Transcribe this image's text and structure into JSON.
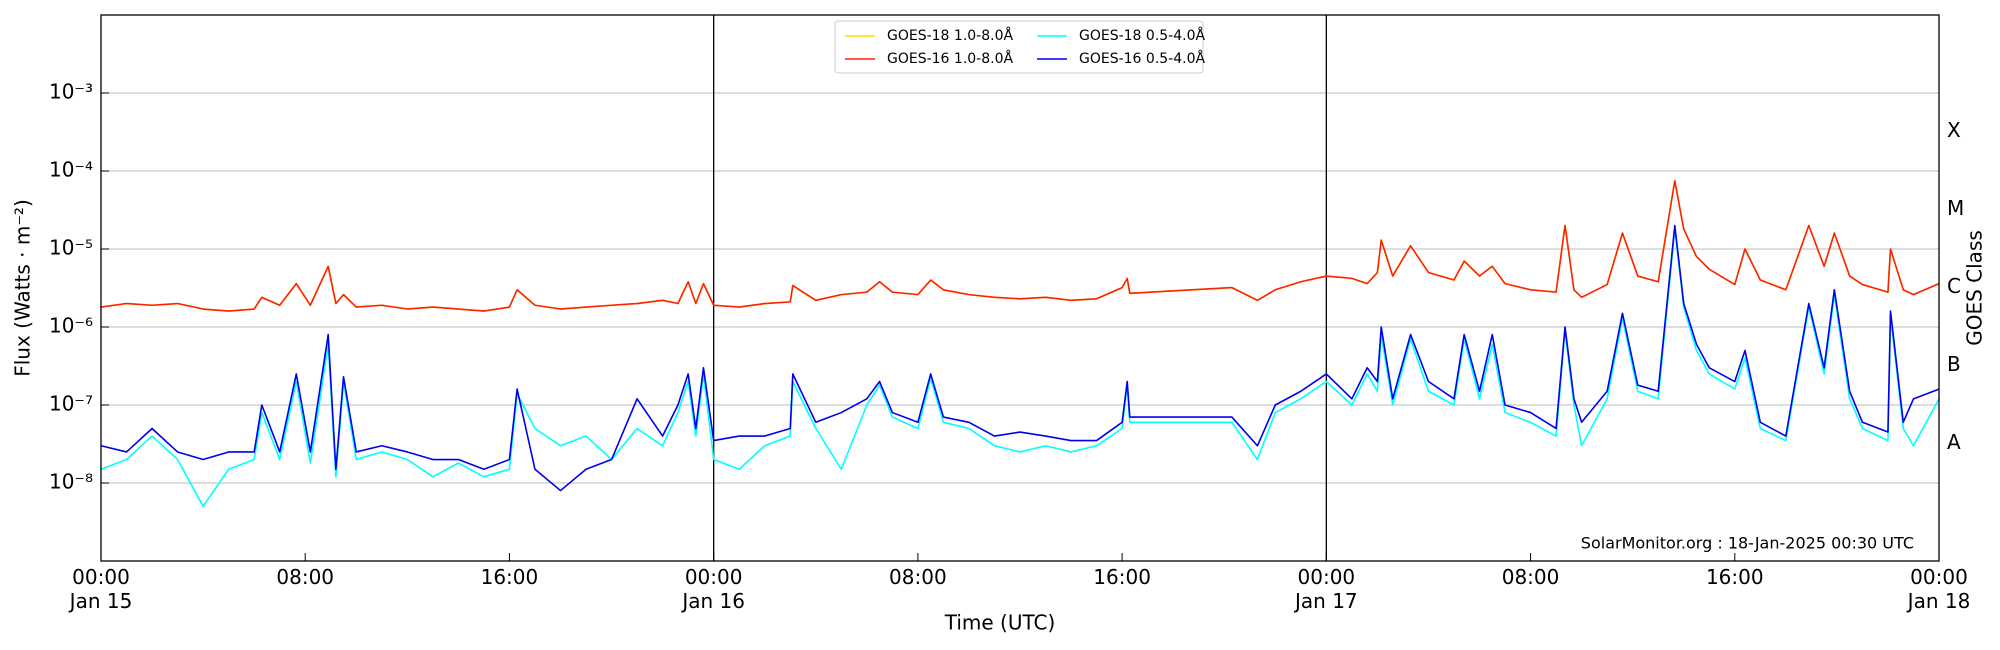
{
  "chart_data": {
    "type": "line",
    "x_label": "Time (UTC)",
    "y_label": "Flux (Watts · m⁻²)",
    "y2_label": "GOES Class",
    "annotation": "SolarMonitor.org : 18-Jan-2025 00:30 UTC",
    "log_y": true,
    "grid": true,
    "legend": "upper center",
    "xlim": [
      0,
      72
    ],
    "ylim": [
      1e-09,
      0.01
    ],
    "y2lim": [
      1e-09,
      0.01
    ],
    "xticks": [
      {
        "value": 0,
        "label": "00:00\nJan 15"
      },
      {
        "value": 8,
        "label": "08:00"
      },
      {
        "value": 16,
        "label": "16:00"
      },
      {
        "value": 24,
        "label": "00:00\nJan 16"
      },
      {
        "value": 32,
        "label": "08:00"
      },
      {
        "value": 40,
        "label": "16:00"
      },
      {
        "value": 48,
        "label": "00:00\nJan 17"
      },
      {
        "value": 56,
        "label": "08:00"
      },
      {
        "value": 64,
        "label": "16:00"
      },
      {
        "value": 72,
        "label": "00:00\nJan 18"
      }
    ],
    "yticks": [
      {
        "value": 1e-08,
        "label": "10⁻⁸"
      },
      {
        "value": 1e-07,
        "label": "10⁻⁷"
      },
      {
        "value": 1e-06,
        "label": "10⁻⁶"
      },
      {
        "value": 1e-05,
        "label": "10⁻⁵"
      },
      {
        "value": 0.0001,
        "label": "10⁻⁴"
      },
      {
        "value": 0.001,
        "label": "10⁻³"
      }
    ],
    "y2ticks": [
      {
        "value": 3.2e-08,
        "label": "A"
      },
      {
        "value": 3.2e-07,
        "label": "B"
      },
      {
        "value": 3.2e-06,
        "label": "C"
      },
      {
        "value": 3.2e-05,
        "label": "M"
      },
      {
        "value": 0.00032,
        "label": "X"
      }
    ],
    "x": [
      0,
      1,
      2,
      3,
      4,
      5,
      6,
      6.3,
      7,
      7.65,
      8.2,
      8.9,
      9.2,
      9.5,
      10,
      11,
      12,
      13,
      14,
      15,
      16,
      16.3,
      17,
      18,
      19,
      20,
      21,
      22,
      22.6,
      23,
      23.3,
      23.6,
      24,
      25,
      26,
      27,
      27.1,
      28,
      29,
      30,
      30.5,
      31,
      32,
      32.5,
      33,
      34,
      35,
      36,
      37,
      38,
      39,
      40,
      40.2,
      40.3,
      44.3,
      45.3,
      46,
      47,
      48,
      49,
      49.6,
      50,
      50.15,
      50.6,
      51.3,
      52,
      53,
      53.4,
      54,
      54.5,
      55,
      56,
      57,
      57.35,
      57.7,
      58,
      59,
      59.6,
      60.2,
      61,
      61.65,
      62,
      62.5,
      63,
      64,
      64.4,
      65,
      66,
      66.9,
      67.5,
      67.9,
      68.5,
      69,
      70,
      70.1,
      70.6,
      71,
      72
    ],
    "series": [
      {
        "name": "GOES-18 1.0-8.0Å",
        "color": "#ffd700",
        "values": [
          1.8e-06,
          2e-06,
          1.9e-06,
          2e-06,
          1.7e-06,
          1.6e-06,
          1.7e-06,
          2.4e-06,
          1.9e-06,
          3.6e-06,
          1.9e-06,
          6e-06,
          2e-06,
          2.6e-06,
          1.8e-06,
          1.9e-06,
          1.7e-06,
          1.8e-06,
          1.7e-06,
          1.6e-06,
          1.8e-06,
          3e-06,
          1.9e-06,
          1.7e-06,
          1.8e-06,
          1.9e-06,
          2e-06,
          2.2e-06,
          2e-06,
          3.8e-06,
          2e-06,
          3.6e-06,
          1.9e-06,
          1.8e-06,
          2e-06,
          2.1e-06,
          3.4e-06,
          2.2e-06,
          2.6e-06,
          2.8e-06,
          3.8e-06,
          2.8e-06,
          2.6e-06,
          4e-06,
          3e-06,
          2.6e-06,
          2.4e-06,
          2.3e-06,
          2.4e-06,
          2.2e-06,
          2.3e-06,
          3.2e-06,
          4.2e-06,
          2.7e-06,
          3.2e-06,
          2.2e-06,
          3e-06,
          3.8e-06,
          4.5e-06,
          4.2e-06,
          3.6e-06,
          5e-06,
          1.3e-05,
          4.5e-06,
          1.1e-05,
          5e-06,
          4e-06,
          7e-06,
          4.5e-06,
          6e-06,
          3.6e-06,
          3e-06,
          2.8e-06,
          2e-05,
          3e-06,
          2.4e-06,
          3.5e-06,
          1.6e-05,
          4.5e-06,
          3.8e-06,
          7.5e-05,
          1.8e-05,
          8e-06,
          5.5e-06,
          3.5e-06,
          1e-05,
          4e-06,
          3e-06,
          2e-05,
          6e-06,
          1.6e-05,
          4.5e-06,
          3.5e-06,
          2.8e-06,
          1e-05,
          3e-06,
          2.6e-06,
          3.6e-06
        ]
      },
      {
        "name": "GOES-16 1.0-8.0Å",
        "color": "#ff2200",
        "values": [
          1.8e-06,
          2e-06,
          1.9e-06,
          2e-06,
          1.7e-06,
          1.6e-06,
          1.7e-06,
          2.4e-06,
          1.9e-06,
          3.6e-06,
          1.9e-06,
          6e-06,
          2e-06,
          2.6e-06,
          1.8e-06,
          1.9e-06,
          1.7e-06,
          1.8e-06,
          1.7e-06,
          1.6e-06,
          1.8e-06,
          3e-06,
          1.9e-06,
          1.7e-06,
          1.8e-06,
          1.9e-06,
          2e-06,
          2.2e-06,
          2e-06,
          3.8e-06,
          2e-06,
          3.6e-06,
          1.9e-06,
          1.8e-06,
          2e-06,
          2.1e-06,
          3.4e-06,
          2.2e-06,
          2.6e-06,
          2.8e-06,
          3.8e-06,
          2.8e-06,
          2.6e-06,
          4e-06,
          3e-06,
          2.6e-06,
          2.4e-06,
          2.3e-06,
          2.4e-06,
          2.2e-06,
          2.3e-06,
          3.2e-06,
          4.2e-06,
          2.7e-06,
          3.2e-06,
          2.2e-06,
          3e-06,
          3.8e-06,
          4.5e-06,
          4.2e-06,
          3.6e-06,
          5e-06,
          1.3e-05,
          4.5e-06,
          1.1e-05,
          5e-06,
          4e-06,
          7e-06,
          4.5e-06,
          6e-06,
          3.6e-06,
          3e-06,
          2.8e-06,
          2e-05,
          3e-06,
          2.4e-06,
          3.5e-06,
          1.6e-05,
          4.5e-06,
          3.8e-06,
          7.5e-05,
          1.8e-05,
          8e-06,
          5.5e-06,
          3.5e-06,
          1e-05,
          4e-06,
          3e-06,
          2e-05,
          6e-06,
          1.6e-05,
          4.5e-06,
          3.5e-06,
          2.8e-06,
          1e-05,
          3e-06,
          2.6e-06,
          3.6e-06
        ]
      },
      {
        "name": "GOES-18 0.5-4.0Å",
        "color": "#00ffff",
        "values": [
          1.5e-08,
          2e-08,
          4e-08,
          2e-08,
          5e-09,
          1.5e-08,
          2e-08,
          8e-08,
          2e-08,
          2e-07,
          1.8e-08,
          6e-07,
          1.2e-08,
          2e-07,
          2e-08,
          2.5e-08,
          2e-08,
          1.2e-08,
          1.8e-08,
          1.2e-08,
          1.5e-08,
          1.4e-07,
          5e-08,
          3e-08,
          4e-08,
          2e-08,
          5e-08,
          3e-08,
          8e-08,
          2e-07,
          4e-08,
          2.5e-07,
          2e-08,
          1.5e-08,
          3e-08,
          4e-08,
          2e-07,
          5e-08,
          1.5e-08,
          1e-07,
          1.8e-07,
          7e-08,
          5e-08,
          2.2e-07,
          6e-08,
          5e-08,
          3e-08,
          2.5e-08,
          3e-08,
          2.5e-08,
          3e-08,
          5e-08,
          1.8e-07,
          6e-08,
          6e-08,
          2e-08,
          8e-08,
          1.2e-07,
          2e-07,
          1e-07,
          2.5e-07,
          1.5e-07,
          8e-07,
          1e-07,
          7e-07,
          1.5e-07,
          1e-07,
          7e-07,
          1.2e-07,
          6e-07,
          8e-08,
          6e-08,
          4e-08,
          9e-07,
          1e-07,
          3e-08,
          1.2e-07,
          1.3e-06,
          1.5e-07,
          1.2e-07,
          1.8e-05,
          1.8e-06,
          5e-07,
          2.5e-07,
          1.6e-07,
          4e-07,
          5e-08,
          3.5e-08,
          1.8e-06,
          2.5e-07,
          2.6e-06,
          1.2e-07,
          5e-08,
          3.5e-08,
          1.4e-06,
          5e-08,
          3e-08,
          1.2e-07
        ]
      },
      {
        "name": "GOES-16 0.5-4.0Å",
        "color": "#0000ee",
        "values": [
          3e-08,
          2.5e-08,
          5e-08,
          2.5e-08,
          2e-08,
          2.5e-08,
          2.5e-08,
          1e-07,
          2.5e-08,
          2.5e-07,
          2.5e-08,
          8e-07,
          1.5e-08,
          2.3e-07,
          2.5e-08,
          3e-08,
          2.5e-08,
          2e-08,
          2e-08,
          1.5e-08,
          2e-08,
          1.6e-07,
          1.5e-08,
          8e-09,
          1.5e-08,
          2e-08,
          1.2e-07,
          4e-08,
          1e-07,
          2.5e-07,
          5e-08,
          3e-07,
          3.5e-08,
          4e-08,
          4e-08,
          5e-08,
          2.5e-07,
          6e-08,
          8e-08,
          1.2e-07,
          2e-07,
          8e-08,
          6e-08,
          2.5e-07,
          7e-08,
          6e-08,
          4e-08,
          4.5e-08,
          4e-08,
          3.5e-08,
          3.5e-08,
          6e-08,
          2e-07,
          7e-08,
          7e-08,
          3e-08,
          1e-07,
          1.5e-07,
          2.5e-07,
          1.2e-07,
          3e-07,
          2e-07,
          1e-06,
          1.2e-07,
          8e-07,
          2e-07,
          1.2e-07,
          8e-07,
          1.5e-07,
          8e-07,
          1e-07,
          8e-08,
          5e-08,
          1e-06,
          1.2e-07,
          6e-08,
          1.5e-07,
          1.5e-06,
          1.8e-07,
          1.5e-07,
          2e-05,
          2e-06,
          6e-07,
          3e-07,
          2e-07,
          5e-07,
          6e-08,
          4e-08,
          2e-06,
          3e-07,
          3e-06,
          1.5e-07,
          6e-08,
          4.5e-08,
          1.6e-06,
          6e-08,
          1.2e-07,
          1.6e-07
        ]
      }
    ]
  }
}
